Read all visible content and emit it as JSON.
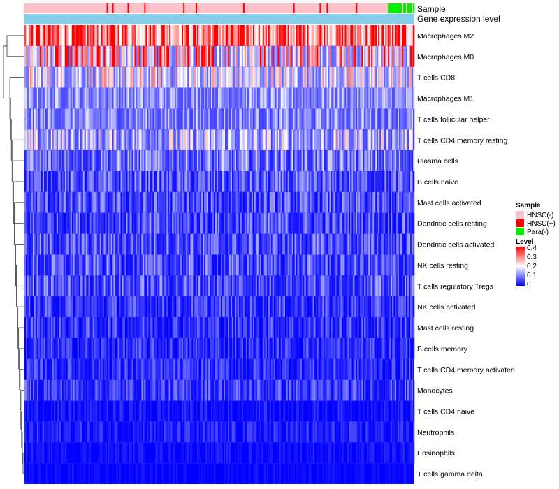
{
  "chart_data": {
    "type": "heatmap",
    "title": "",
    "annotation_rows": [
      {
        "label": "Sample"
      },
      {
        "label": "Gene expression level"
      }
    ],
    "rows": [
      {
        "label": "Macrophages M2",
        "mean": 0.27,
        "spread": 0.12
      },
      {
        "label": "Macrophages M0",
        "mean": 0.17,
        "spread": 0.15
      },
      {
        "label": "T cells CD8",
        "mean": 0.13,
        "spread": 0.09
      },
      {
        "label": "Macrophages M1",
        "mean": 0.09,
        "spread": 0.05
      },
      {
        "label": "T cells follicular helper",
        "mean": 0.08,
        "spread": 0.05
      },
      {
        "label": "T cells CD4 memory resting",
        "mean": 0.1,
        "spread": 0.08
      },
      {
        "label": "Plasma cells",
        "mean": 0.06,
        "spread": 0.06
      },
      {
        "label": "B cells naive",
        "mean": 0.04,
        "spread": 0.05
      },
      {
        "label": "Mast cells activated",
        "mean": 0.035,
        "spread": 0.05
      },
      {
        "label": "Dendritic cells resting",
        "mean": 0.035,
        "spread": 0.05
      },
      {
        "label": "Dendritic cells activated",
        "mean": 0.04,
        "spread": 0.05
      },
      {
        "label": "NK cells resting",
        "mean": 0.035,
        "spread": 0.05
      },
      {
        "label": "T cells regulatory  Tregs",
        "mean": 0.04,
        "spread": 0.05
      },
      {
        "label": "NK cells activated",
        "mean": 0.025,
        "spread": 0.04
      },
      {
        "label": "Mast cells resting",
        "mean": 0.025,
        "spread": 0.04
      },
      {
        "label": "B cells memory",
        "mean": 0.02,
        "spread": 0.035
      },
      {
        "label": "T cells CD4 memory activated",
        "mean": 0.02,
        "spread": 0.035
      },
      {
        "label": "Monocytes",
        "mean": 0.03,
        "spread": 0.04
      },
      {
        "label": "T cells CD4 naive",
        "mean": 0.005,
        "spread": 0.02
      },
      {
        "label": "Neutrophils",
        "mean": 0.012,
        "spread": 0.025
      },
      {
        "label": "Eosinophils",
        "mean": 0.004,
        "spread": 0.015
      },
      {
        "label": "T cells gamma delta",
        "mean": 0.002,
        "spread": 0.01
      }
    ],
    "sample_groups": [
      {
        "name": "HNSC(-)",
        "color": "#ffc0cb",
        "share": 0.9
      },
      {
        "name": "HNSC(+)",
        "color": "#ff0000",
        "share": 0.06
      },
      {
        "name": "Para(-)",
        "color": "#00ee00",
        "share": 0.04
      }
    ],
    "expression_color": "#87ceeb",
    "columns": 280,
    "color_scale": {
      "title": "Level",
      "min": 0,
      "max": 0.4,
      "ticks": [
        "0.4",
        "0.3",
        "0.2",
        "0.1",
        "0"
      ],
      "low": "#0000ff",
      "mid": "#ffffff",
      "high": "#ff0000"
    },
    "legend": {
      "sample_title": "Sample",
      "position": "right"
    }
  }
}
